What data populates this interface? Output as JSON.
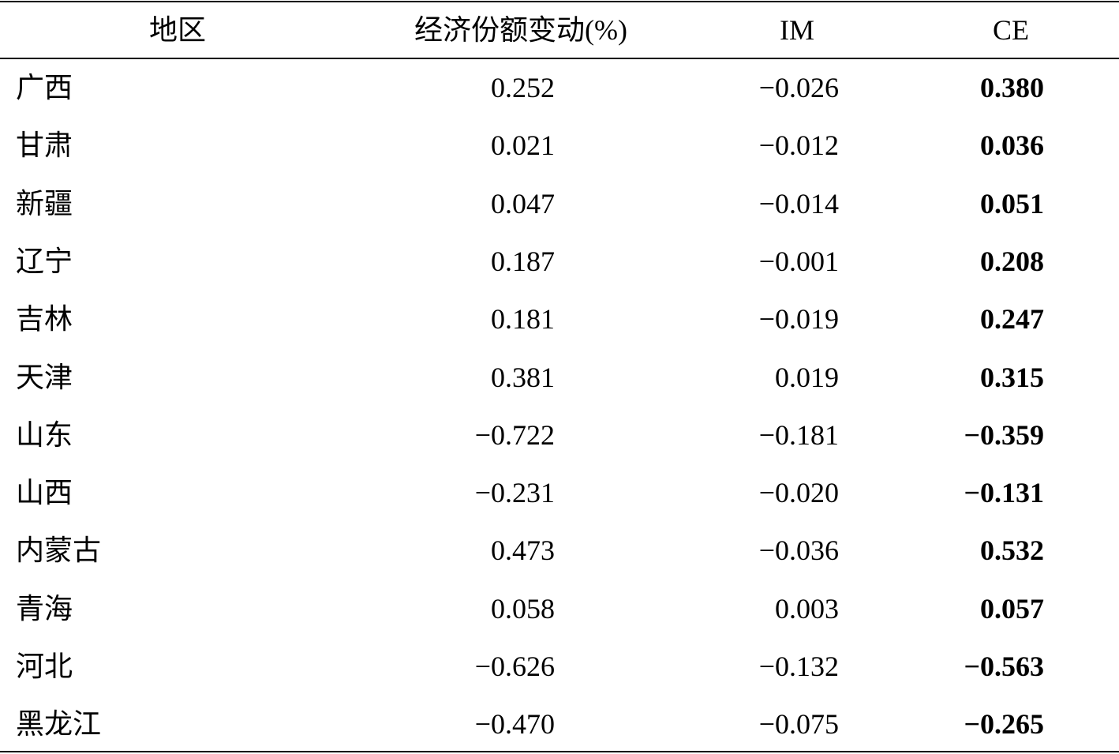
{
  "table": {
    "header": [
      "地区",
      "经济份额变动(%)",
      "IM",
      "CE"
    ],
    "rows": [
      [
        "广西",
        "0.252",
        "−0.026",
        "0.380"
      ],
      [
        "甘肃",
        "0.021",
        "−0.012",
        "0.036"
      ],
      [
        "新疆",
        "0.047",
        "−0.014",
        "0.051"
      ],
      [
        "辽宁",
        "0.187",
        "−0.001",
        "0.208"
      ],
      [
        "吉林",
        "0.181",
        "−0.019",
        "0.247"
      ],
      [
        "天津",
        "0.381",
        "0.019",
        "0.315"
      ],
      [
        "山东",
        "−0.722",
        "−0.181",
        "−0.359"
      ],
      [
        "山西",
        "−0.231",
        "−0.020",
        "−0.131"
      ],
      [
        "内蒙古",
        "0.473",
        "−0.036",
        "0.532"
      ],
      [
        "青海",
        "0.058",
        "0.003",
        "0.057"
      ],
      [
        "河北",
        "−0.626",
        "−0.132",
        "−0.563"
      ],
      [
        "黑龙江",
        "−0.470",
        "−0.075",
        "−0.265"
      ]
    ]
  }
}
